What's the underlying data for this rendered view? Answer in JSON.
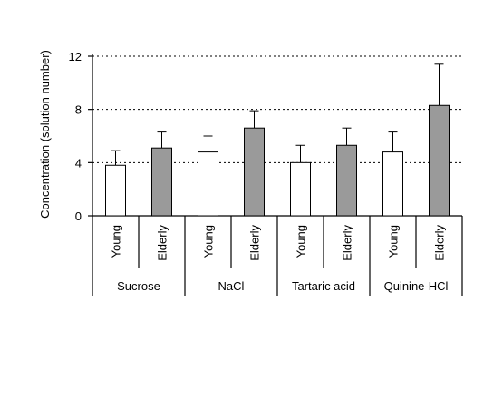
{
  "chart_data": {
    "type": "bar",
    "title": "",
    "xlabel": "",
    "ylabel": "Concentration (solution number)",
    "ylim": [
      0,
      12
    ],
    "yticks": [
      0,
      4,
      8,
      12
    ],
    "grid": "horizontal dotted at 4, 8, 12",
    "groups": [
      "Sucrose",
      "NaCl",
      "Tartaric acid",
      "Quinine-HCl"
    ],
    "subcategories": [
      "Young",
      "Elderly"
    ],
    "series": [
      {
        "name": "Young",
        "color": "#ffffff",
        "values": [
          3.8,
          4.8,
          4.0,
          4.8
        ],
        "errors": [
          1.1,
          1.2,
          1.3,
          1.5
        ]
      },
      {
        "name": "Elderly",
        "color": "#9a9a9a",
        "values": [
          5.1,
          6.6,
          5.3,
          8.3
        ],
        "errors": [
          1.2,
          1.3,
          1.3,
          3.1
        ]
      }
    ]
  }
}
